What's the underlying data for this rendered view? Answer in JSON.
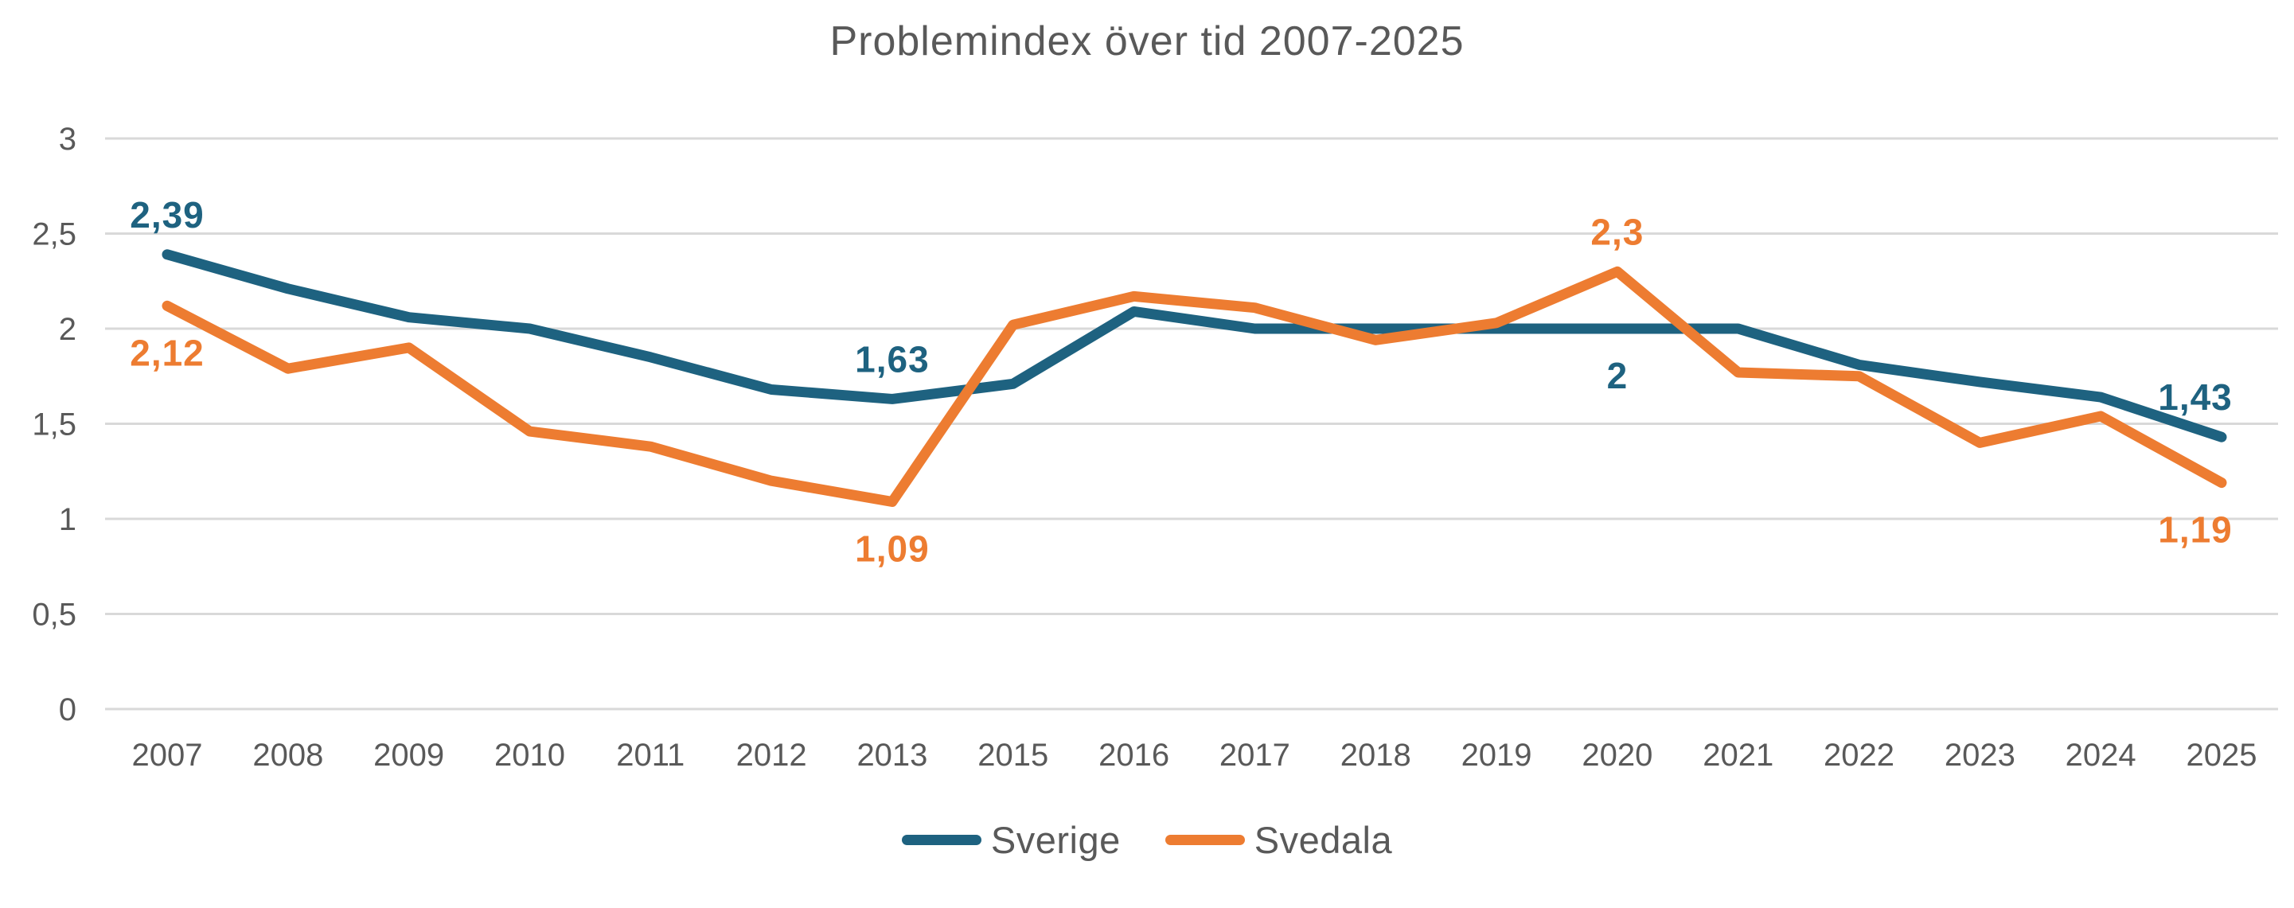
{
  "title": "Problemindex över tid 2007-2025",
  "colors": {
    "text_gray": "#595959",
    "gridline": "#D9D9D9",
    "sverige_blue": "#1E6280",
    "svedala_orange": "#ED7C31"
  },
  "chart_data": {
    "type": "line",
    "title": "Problemindex över tid 2007-2025",
    "categories": [
      "2007",
      "2008",
      "2009",
      "2010",
      "2011",
      "2012",
      "2013",
      "2015",
      "2016",
      "2017",
      "2018",
      "2019",
      "2020",
      "2021",
      "2022",
      "2023",
      "2024",
      "2025"
    ],
    "series": [
      {
        "name": "Sverige",
        "color": "#1E6280",
        "values": [
          2.39,
          2.21,
          2.06,
          2.0,
          1.85,
          1.68,
          1.63,
          1.71,
          2.09,
          2.0,
          2.0,
          2.0,
          2.0,
          2.0,
          1.81,
          1.72,
          1.64,
          1.43
        ]
      },
      {
        "name": "Svedala",
        "color": "#ED7C31",
        "values": [
          2.12,
          1.79,
          1.9,
          1.46,
          1.38,
          1.2,
          1.09,
          2.02,
          2.17,
          2.11,
          1.94,
          2.03,
          2.3,
          1.77,
          1.75,
          1.4,
          1.54,
          1.19
        ]
      }
    ],
    "xlabel": "",
    "ylabel": "",
    "ylim": [
      0,
      3
    ],
    "ytick_values": [
      0,
      0.5,
      1,
      1.5,
      2,
      2.5,
      3
    ],
    "ytick_labels": [
      "0",
      "0,5",
      "1",
      "1,5",
      "2",
      "2,5",
      "3"
    ],
    "grid": true,
    "legend_position": "bottom",
    "point_labels": [
      {
        "series": "Sverige",
        "category": "2007",
        "text": "2,39",
        "placement": "above"
      },
      {
        "series": "Svedala",
        "category": "2007",
        "text": "2,12",
        "placement": "below"
      },
      {
        "series": "Sverige",
        "category": "2013",
        "text": "1,63",
        "placement": "above"
      },
      {
        "series": "Svedala",
        "category": "2013",
        "text": "1,09",
        "placement": "below"
      },
      {
        "series": "Svedala",
        "category": "2020",
        "text": "2,3",
        "placement": "above"
      },
      {
        "series": "Sverige",
        "category": "2020",
        "text": "2",
        "placement": "below"
      },
      {
        "series": "Sverige",
        "category": "2025",
        "text": "1,43",
        "placement": "above"
      },
      {
        "series": "Svedala",
        "category": "2025",
        "text": "1,19",
        "placement": "below"
      }
    ]
  }
}
